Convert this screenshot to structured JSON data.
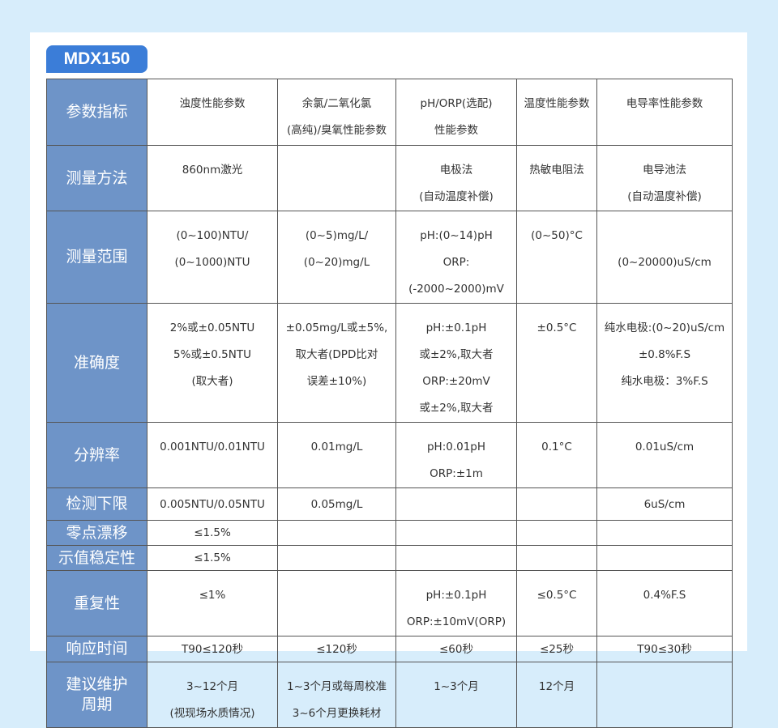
{
  "badge": "MDX150",
  "table": {
    "rows": [
      {
        "label": [
          "参数指标"
        ],
        "cells": [
          [
            "浊度性能参数"
          ],
          [
            "余氯/二氧化氯",
            "(高纯)/臭氧性能参数"
          ],
          [
            "pH/ORP(选配)",
            "性能参数"
          ],
          [
            "温度性能参数"
          ],
          [
            "电导率性能参数"
          ]
        ]
      },
      {
        "label": [
          "测量方法"
        ],
        "cells": [
          [
            "860nm激光"
          ],
          [],
          [
            "电极法",
            "(自动温度补偿)"
          ],
          [
            "热敏电阻法"
          ],
          [
            "电导池法",
            "(自动温度补偿)"
          ]
        ]
      },
      {
        "label": [
          "测量范围"
        ],
        "cells": [
          [
            "(0~100)NTU/",
            "(0~1000)NTU"
          ],
          [
            "(0~5)mg/L/",
            "(0~20)mg/L"
          ],
          [
            "pH:(0~14)pH",
            "ORP:(-2000~2000)mV"
          ],
          [
            "(0~50)°C"
          ],
          [
            "(0~20000)uS/cm"
          ]
        ]
      },
      {
        "label": [
          "准确度"
        ],
        "cells": [
          [
            "2%或±0.05NTU",
            "5%或±0.5NTU",
            "(取大者)"
          ],
          [
            "±0.05mg/L或±5%,",
            "取大者(DPD比对",
            "误差±10%)"
          ],
          [
            "pH:±0.1pH",
            "或±2%,取大者",
            "ORP:±20mV",
            "或±2%,取大者"
          ],
          [
            "±0.5°C"
          ],
          [
            "纯水电极:(0~20)uS/cm",
            "±0.8%F.S",
            "纯水电极：3%F.S"
          ]
        ]
      },
      {
        "label": [
          "分辨率"
        ],
        "cells": [
          [
            "0.001NTU/0.01NTU"
          ],
          [
            "0.01mg/L"
          ],
          [
            "pH:0.01pH",
            "ORP:±1m"
          ],
          [
            "0.1°C"
          ],
          [
            "0.01uS/cm"
          ]
        ]
      },
      {
        "label": [
          "检测下限"
        ],
        "cells": [
          [
            "0.005NTU/0.05NTU"
          ],
          [
            "0.05mg/L"
          ],
          [],
          [],
          [
            "6uS/cm"
          ]
        ]
      },
      {
        "label": [
          "零点漂移"
        ],
        "cells": [
          [
            "≤1.5%"
          ],
          [],
          [],
          [],
          []
        ]
      },
      {
        "label": [
          "示值稳定性"
        ],
        "cells": [
          [
            "≤1.5%"
          ],
          [],
          [],
          [],
          []
        ]
      },
      {
        "label": [
          "重复性"
        ],
        "cells": [
          [
            "≤1%"
          ],
          [],
          [
            "pH:±0.1pH",
            "ORP:±10mV(ORP)"
          ],
          [
            "≤0.5°C"
          ],
          [
            "0.4%F.S"
          ]
        ]
      },
      {
        "label": [
          "响应时间"
        ],
        "cells": [
          [
            "T90≤120秒"
          ],
          [
            "≤120秒"
          ],
          [
            "≤60秒"
          ],
          [
            "≤25秒"
          ],
          [
            "T90≤30秒"
          ]
        ]
      },
      {
        "label": [
          "建议维护",
          "周期"
        ],
        "cells": [
          [
            "3~12个月",
            "(视现场水质情况)"
          ],
          [
            "1~3个月或每周校准",
            "3~6个月更换耗材"
          ],
          [
            "1~3个月"
          ],
          [
            "12个月"
          ],
          []
        ]
      }
    ]
  }
}
